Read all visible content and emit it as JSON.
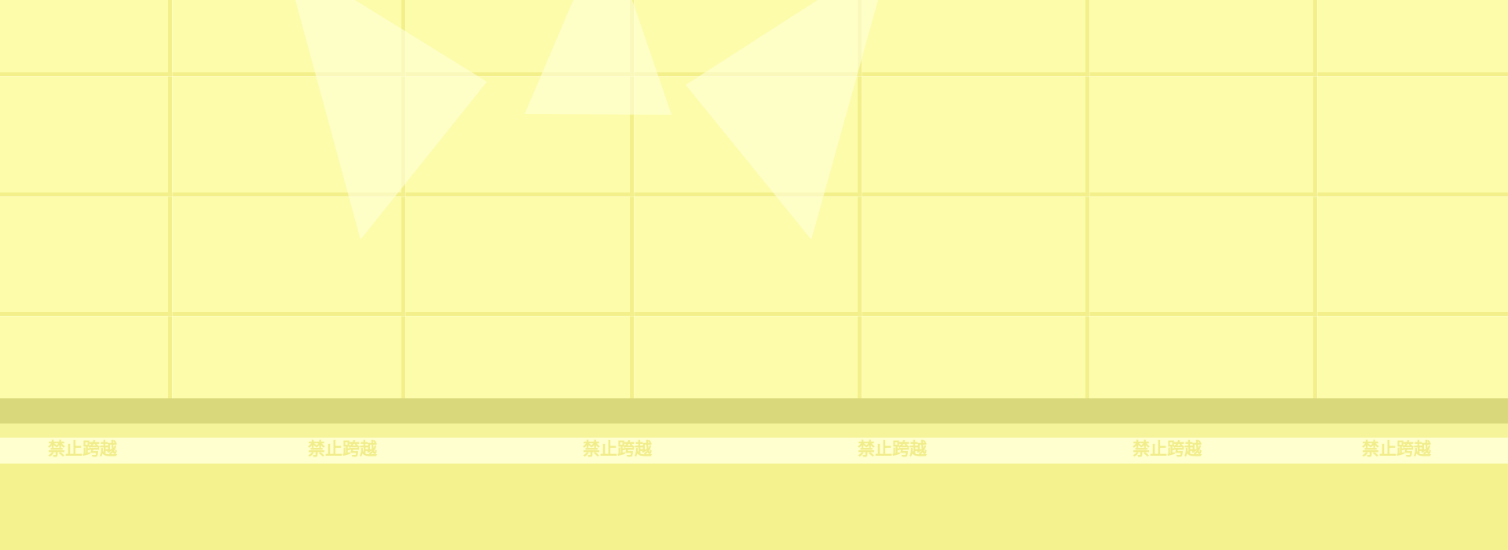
{
  "scene": {
    "background_color": "#f4f28f",
    "wall_color": "#fdfcaa",
    "grout_color": "#f3f08c",
    "base_color": "#d9d87a",
    "strip_color": "#ffffcf",
    "warning_text_color": "#f1ed8b",
    "bunting_color": "rgba(255,255,220,0.58)"
  },
  "warning_strip": {
    "items": [
      "禁止跨越",
      "禁止跨越",
      "禁止跨越",
      "禁止跨越",
      "禁止跨越",
      "禁止跨越"
    ]
  }
}
